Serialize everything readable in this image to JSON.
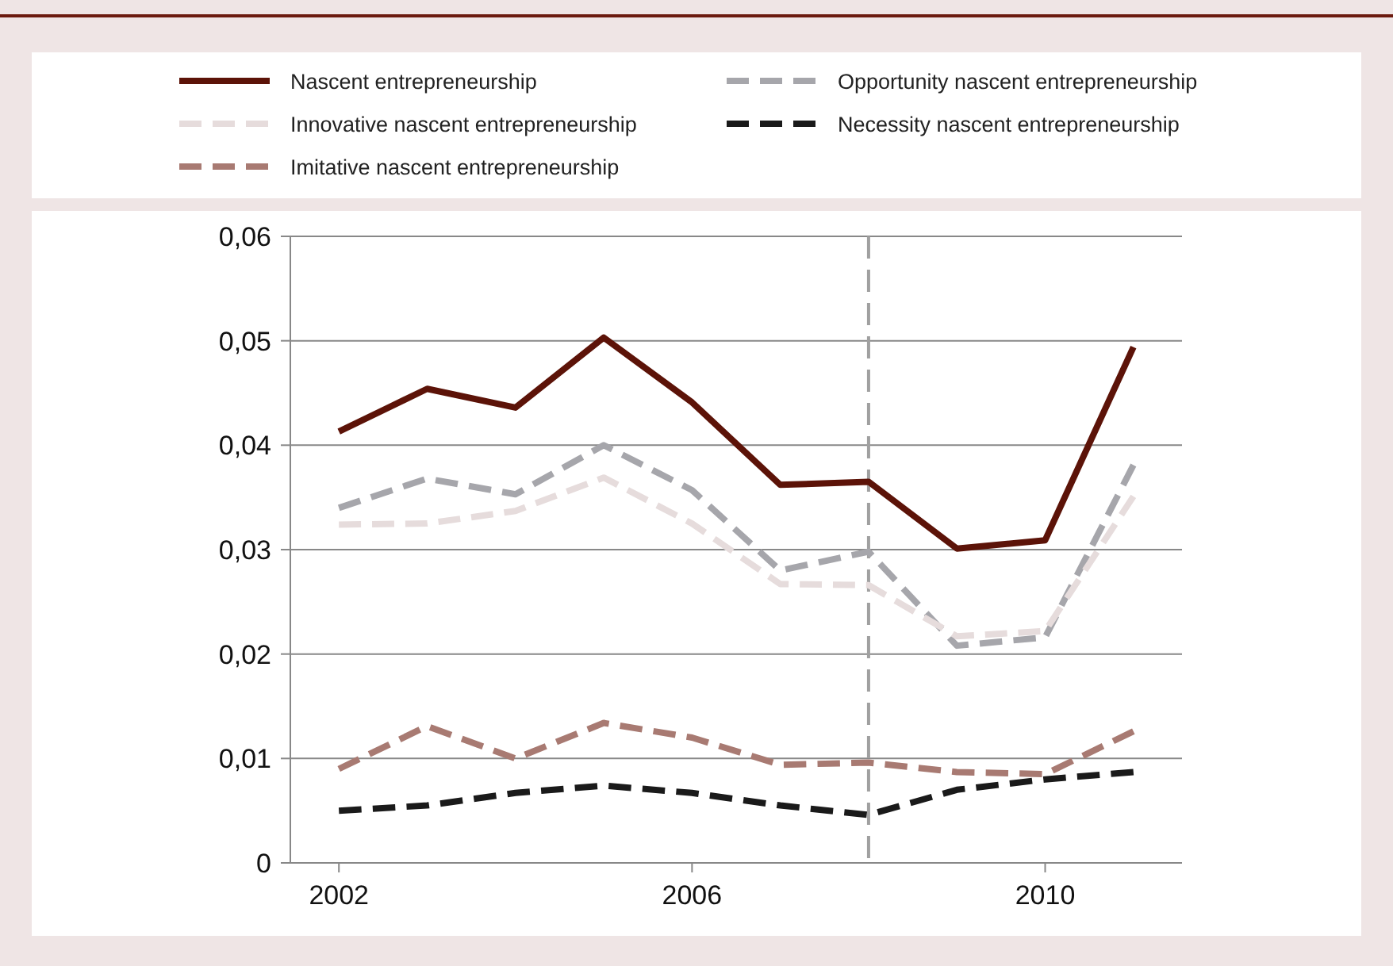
{
  "chart_data": {
    "type": "line",
    "x": [
      2002,
      2003,
      2004,
      2005,
      2006,
      2007,
      2008,
      2009,
      2010,
      2011
    ],
    "xlim": [
      2001.45,
      2011.55
    ],
    "xticks": [
      2002,
      2006,
      2010
    ],
    "ylim": [
      0,
      0.06
    ],
    "yticks": [
      0,
      {
        "value": 0.01,
        "label": "0,01"
      },
      {
        "value": 0.02,
        "label": "0,02"
      },
      {
        "value": 0.03,
        "label": "0,03"
      },
      {
        "value": 0.04,
        "label": "0,04"
      },
      {
        "value": 0.05,
        "label": "0,05"
      },
      {
        "value": 0.06,
        "label": "0,06"
      }
    ],
    "grid": "y",
    "legend": "top",
    "ref_lines": [
      {
        "axis": "x",
        "value": 2008,
        "color": "#a0a0a0",
        "line_style": "dashed"
      }
    ],
    "series": [
      {
        "name": "Nascent entrepreneurship",
        "color": "#5c1308",
        "line_style": "solid",
        "values": [
          0.0413,
          0.0454,
          0.0436,
          0.0503,
          0.0441,
          0.0362,
          0.0365,
          0.0301,
          0.0309,
          0.0494
        ]
      },
      {
        "name": "Opportunity nascent entrepreneurship",
        "color": "#a6a6ab",
        "line_style": "dashed",
        "values": [
          0.034,
          0.0368,
          0.0353,
          0.04,
          0.0357,
          0.028,
          0.0298,
          0.0208,
          0.0216,
          0.0381
        ]
      },
      {
        "name": "Innovative nascent entrepreneurship",
        "color": "#e6dcdc",
        "line_style": "dashed",
        "values": [
          0.0324,
          0.0325,
          0.0337,
          0.0369,
          0.0325,
          0.0267,
          0.0266,
          0.0217,
          0.0222,
          0.0351
        ]
      },
      {
        "name": "Necessity nascent entrepreneurship",
        "color": "#1a1a1a",
        "line_style": "dashed",
        "values": [
          0.005,
          0.0055,
          0.0067,
          0.0074,
          0.0067,
          0.0055,
          0.0046,
          0.007,
          0.008,
          0.0087
        ]
      },
      {
        "name": "Imitative nascent entrepreneurship",
        "color": "#a87a72",
        "line_style": "dashed",
        "values": [
          0.009,
          0.0131,
          0.01,
          0.0134,
          0.012,
          0.0094,
          0.0096,
          0.0087,
          0.0085,
          0.0126
        ]
      }
    ]
  }
}
